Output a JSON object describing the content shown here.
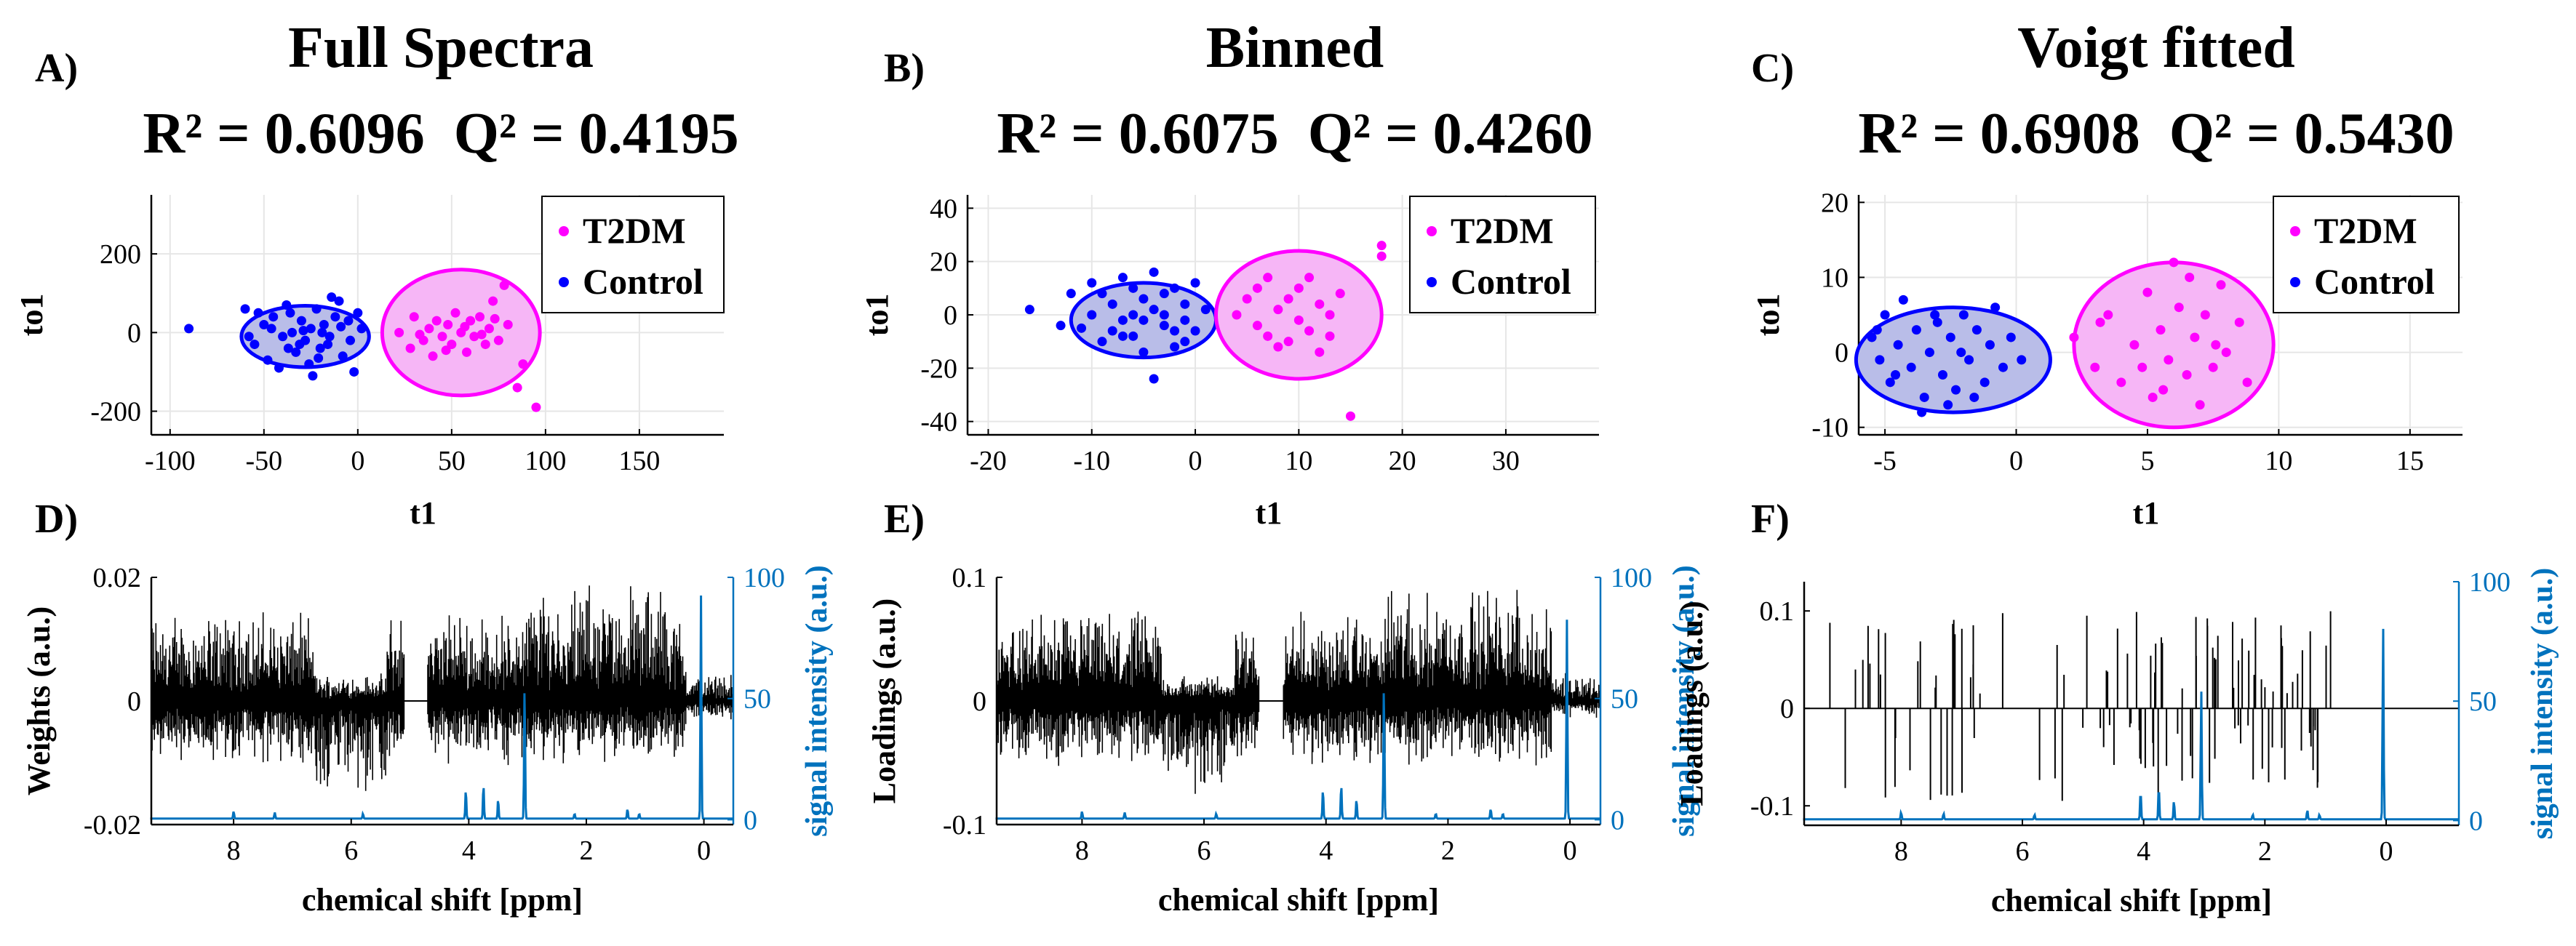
{
  "colors": {
    "t2dm": "#FF00FF",
    "control": "#0000FF",
    "signal": "#0072BD",
    "loading": "#000000",
    "grid": "#e6e6e6"
  },
  "chart_data": [
    {
      "type": "scatter",
      "panel": "A)",
      "title": "Full Spectra",
      "metrics": {
        "r2_label": "R² = 0.6096",
        "q2_label": "Q² = 0.4195"
      },
      "xlabel": "t1",
      "ylabel": "to1",
      "xlim": [
        -110,
        195
      ],
      "ylim": [
        -260,
        350
      ],
      "xticks": [
        -100,
        -50,
        0,
        50,
        100,
        150
      ],
      "yticks": [
        -200,
        0,
        200
      ],
      "legend": {
        "placement": "top-right",
        "entries": [
          "T2DM",
          "Control"
        ]
      },
      "ellipses": [
        {
          "group": "control",
          "cx": -28,
          "cy": -10,
          "rx": 34,
          "ry": 78
        },
        {
          "group": "t2dm",
          "cx": 55,
          "cy": 0,
          "rx": 42,
          "ry": 160
        }
      ],
      "series": [
        {
          "name": "Control",
          "group": "control",
          "points": [
            [
              -90,
              10
            ],
            [
              -60,
              60
            ],
            [
              -55,
              -30
            ],
            [
              -50,
              20
            ],
            [
              -48,
              -70
            ],
            [
              -45,
              40
            ],
            [
              -40,
              -10
            ],
            [
              -38,
              70
            ],
            [
              -35,
              0
            ],
            [
              -33,
              -50
            ],
            [
              -30,
              30
            ],
            [
              -28,
              -20
            ],
            [
              -25,
              10
            ],
            [
              -22,
              60
            ],
            [
              -20,
              -40
            ],
            [
              -18,
              20
            ],
            [
              -15,
              -10
            ],
            [
              -12,
              40
            ],
            [
              -10,
              80
            ],
            [
              -8,
              -60
            ],
            [
              -5,
              30
            ],
            [
              -2,
              -100
            ],
            [
              0,
              50
            ],
            [
              2,
              10
            ],
            [
              -58,
              -10
            ],
            [
              -42,
              -90
            ],
            [
              -36,
              50
            ],
            [
              -26,
              -80
            ],
            [
              -16,
              -30
            ],
            [
              -24,
              -110
            ],
            [
              -14,
              90
            ],
            [
              -4,
              -20
            ],
            [
              -46,
              10
            ],
            [
              -31,
              -30
            ],
            [
              -19,
              0
            ],
            [
              -53,
              50
            ],
            [
              -9,
              15
            ],
            [
              -37,
              -40
            ],
            [
              -29,
              5
            ],
            [
              -21,
              -65
            ]
          ]
        },
        {
          "name": "T2DM",
          "group": "t2dm",
          "points": [
            [
              22,
              0
            ],
            [
              28,
              -40
            ],
            [
              30,
              40
            ],
            [
              35,
              -20
            ],
            [
              38,
              10
            ],
            [
              40,
              -60
            ],
            [
              42,
              30
            ],
            [
              45,
              -10
            ],
            [
              48,
              20
            ],
            [
              50,
              -30
            ],
            [
              52,
              50
            ],
            [
              55,
              0
            ],
            [
              58,
              -50
            ],
            [
              60,
              30
            ],
            [
              62,
              -10
            ],
            [
              65,
              40
            ],
            [
              68,
              -30
            ],
            [
              70,
              10
            ],
            [
              72,
              80
            ],
            [
              75,
              -20
            ],
            [
              78,
              120
            ],
            [
              80,
              20
            ],
            [
              85,
              -140
            ],
            [
              95,
              -190
            ],
            [
              33,
              -5
            ],
            [
              47,
              -45
            ],
            [
              57,
              15
            ],
            [
              66,
              -5
            ],
            [
              73,
              35
            ],
            [
              88,
              -80
            ]
          ]
        }
      ]
    },
    {
      "type": "scatter",
      "panel": "B)",
      "title": "Binned",
      "metrics": {
        "r2_label": "R² = 0.6075",
        "q2_label": "Q² = 0.4260"
      },
      "xlabel": "t1",
      "ylabel": "to1",
      "xlim": [
        -22,
        39
      ],
      "ylim": [
        -45,
        45
      ],
      "xticks": [
        -20,
        -10,
        0,
        10,
        20,
        30
      ],
      "yticks": [
        -40,
        -20,
        0,
        20,
        40
      ],
      "legend": {
        "placement": "top-right",
        "entries": [
          "T2DM",
          "Control"
        ]
      },
      "ellipses": [
        {
          "group": "control",
          "cx": -5,
          "cy": -2,
          "rx": 7,
          "ry": 14
        },
        {
          "group": "t2dm",
          "cx": 10,
          "cy": 0,
          "rx": 8,
          "ry": 24
        }
      ],
      "series": [
        {
          "name": "Control",
          "group": "control",
          "points": [
            [
              -16,
              2
            ],
            [
              -12,
              8
            ],
            [
              -11,
              -5
            ],
            [
              -10,
              12
            ],
            [
              -9,
              -10
            ],
            [
              -8,
              4
            ],
            [
              -7,
              -2
            ],
            [
              -7,
              14
            ],
            [
              -6,
              0
            ],
            [
              -6,
              -8
            ],
            [
              -5,
              6
            ],
            [
              -5,
              -14
            ],
            [
              -4,
              2
            ],
            [
              -4,
              16
            ],
            [
              -3,
              -4
            ],
            [
              -3,
              8
            ],
            [
              -2,
              -12
            ],
            [
              -2,
              10
            ],
            [
              -1,
              -2
            ],
            [
              -1,
              4
            ],
            [
              0,
              -6
            ],
            [
              0,
              12
            ],
            [
              1,
              2
            ],
            [
              -13,
              -4
            ],
            [
              -8,
              -6
            ],
            [
              -4,
              -24
            ],
            [
              -9,
              8
            ],
            [
              -6,
              10
            ],
            [
              -2,
              -6
            ],
            [
              -3,
              0
            ],
            [
              -7,
              -8
            ],
            [
              -1,
              -10
            ],
            [
              -5,
              -2
            ],
            [
              -10,
              0
            ]
          ]
        },
        {
          "name": "T2DM",
          "group": "t2dm",
          "points": [
            [
              4,
              0
            ],
            [
              5,
              6
            ],
            [
              6,
              -4
            ],
            [
              6,
              10
            ],
            [
              7,
              -8
            ],
            [
              8,
              2
            ],
            [
              8,
              -12
            ],
            [
              9,
              6
            ],
            [
              10,
              -2
            ],
            [
              10,
              10
            ],
            [
              11,
              -6
            ],
            [
              12,
              4
            ],
            [
              12,
              -14
            ],
            [
              13,
              0
            ],
            [
              14,
              8
            ],
            [
              15,
              -38
            ],
            [
              18,
              22
            ],
            [
              18,
              26
            ],
            [
              7,
              14
            ],
            [
              11,
              14
            ],
            [
              9,
              -10
            ],
            [
              13,
              -8
            ]
          ]
        }
      ]
    },
    {
      "type": "scatter",
      "panel": "C)",
      "title": "Voigt fitted",
      "metrics": {
        "r2_label": "R² = 0.6908",
        "q2_label": "Q² = 0.5430"
      },
      "xlabel": "t1",
      "ylabel": "to1",
      "xlim": [
        -6,
        17
      ],
      "ylim": [
        -11,
        21
      ],
      "xticks": [
        -5,
        0,
        5,
        10,
        15
      ],
      "yticks": [
        -10,
        0,
        10,
        20
      ],
      "legend": {
        "placement": "top-right",
        "entries": [
          "T2DM",
          "Control"
        ]
      },
      "ellipses": [
        {
          "group": "control",
          "cx": -2.4,
          "cy": -1,
          "rx": 3.7,
          "ry": 7
        },
        {
          "group": "t2dm",
          "cx": 6,
          "cy": 1,
          "rx": 3.8,
          "ry": 11
        }
      ],
      "series": [
        {
          "name": "Control",
          "group": "control",
          "points": [
            [
              -5.5,
              2
            ],
            [
              -5.2,
              -1
            ],
            [
              -5,
              5
            ],
            [
              -4.8,
              -4
            ],
            [
              -4.5,
              1
            ],
            [
              -4.3,
              7
            ],
            [
              -4,
              -2
            ],
            [
              -3.8,
              3
            ],
            [
              -3.5,
              -6
            ],
            [
              -3.3,
              0
            ],
            [
              -3,
              4
            ],
            [
              -2.8,
              -3
            ],
            [
              -2.5,
              2
            ],
            [
              -2.3,
              -5
            ],
            [
              -2,
              5
            ],
            [
              -1.8,
              -1
            ],
            [
              -1.5,
              3
            ],
            [
              -1.2,
              -4
            ],
            [
              -1,
              1
            ],
            [
              -0.8,
              6
            ],
            [
              -0.5,
              -2
            ],
            [
              -0.2,
              2
            ],
            [
              0.2,
              -1
            ],
            [
              -3.6,
              -8
            ],
            [
              -2.6,
              -7
            ],
            [
              -4.6,
              -3
            ],
            [
              -1.6,
              -6
            ],
            [
              -5.3,
              3
            ],
            [
              -3.1,
              5
            ],
            [
              -2.1,
              0
            ]
          ]
        },
        {
          "name": "T2DM",
          "group": "t2dm",
          "points": [
            [
              2.2,
              2
            ],
            [
              3,
              -2
            ],
            [
              3.5,
              5
            ],
            [
              4,
              -4
            ],
            [
              4.5,
              1
            ],
            [
              5,
              8
            ],
            [
              5.2,
              -6
            ],
            [
              5.5,
              3
            ],
            [
              5.8,
              -1
            ],
            [
              6,
              12
            ],
            [
              6.2,
              6
            ],
            [
              6.5,
              -3
            ],
            [
              6.8,
              2
            ],
            [
              7,
              -7
            ],
            [
              7.2,
              5
            ],
            [
              7.5,
              -2
            ],
            [
              7.8,
              9
            ],
            [
              8,
              0
            ],
            [
              8.5,
              4
            ],
            [
              8.8,
              -4
            ],
            [
              4.8,
              -2
            ],
            [
              6.6,
              10
            ],
            [
              5.6,
              -5
            ],
            [
              7.6,
              1
            ],
            [
              3.2,
              4
            ]
          ]
        }
      ]
    },
    {
      "type": "line",
      "panel": "D)",
      "xlabel": "chemical shift [ppm]",
      "ylabel": "Weights (a.u.)",
      "y2label": "signal intensity (a.u.)",
      "xlim": [
        9.4,
        -0.5
      ],
      "ylim": [
        -0.02,
        0.02
      ],
      "y2lim": [
        -2,
        100
      ],
      "xticks": [
        8,
        6,
        4,
        2,
        0
      ],
      "yticks": [
        -0.02,
        0,
        0.02
      ],
      "y2ticks": [
        0,
        50,
        100
      ],
      "ytick_labels": [
        "-0.02",
        "0",
        "0.02"
      ],
      "loading_style": "dense",
      "loading_amplitude": 0.012,
      "negative_dip_ppm": [
        6.6,
        5.4
      ],
      "signal_peaks": [
        {
          "ppm": 4.05,
          "h": 12
        },
        {
          "ppm": 3.75,
          "h": 14
        },
        {
          "ppm": 3.5,
          "h": 8
        },
        {
          "ppm": 3.05,
          "h": 55
        },
        {
          "ppm": 1.3,
          "h": 4
        },
        {
          "ppm": 0.05,
          "h": 92
        }
      ]
    },
    {
      "type": "line",
      "panel": "E)",
      "xlabel": "chemical shift [ppm]",
      "ylabel": "Loadings (a.u.)",
      "y2label": "signal intensity (a.u.)",
      "xlim": [
        9.4,
        -0.5
      ],
      "ylim": [
        -0.1,
        0.1
      ],
      "y2lim": [
        -2,
        100
      ],
      "xticks": [
        8,
        6,
        4,
        2,
        0
      ],
      "yticks": [
        -0.1,
        0,
        0.1
      ],
      "y2ticks": [
        0,
        50,
        100
      ],
      "ytick_labels": [
        "-0.1",
        "0",
        "0.1"
      ],
      "loading_style": "dense",
      "loading_amplitude": 0.06,
      "negative_dip_ppm": [
        6.7,
        5.5
      ],
      "signal_peaks": [
        {
          "ppm": 4.05,
          "h": 12
        },
        {
          "ppm": 3.75,
          "h": 14
        },
        {
          "ppm": 3.5,
          "h": 8
        },
        {
          "ppm": 3.05,
          "h": 55
        },
        {
          "ppm": 1.3,
          "h": 4
        },
        {
          "ppm": 0.05,
          "h": 82
        }
      ]
    },
    {
      "type": "line",
      "panel": "F)",
      "xlabel": "chemical shift [ppm]",
      "ylabel": "Loadings (a.u.)",
      "y2label": "signal intensity (a.u.)",
      "xlim": [
        9.6,
        -1.2
      ],
      "ylim": [
        -0.12,
        0.13
      ],
      "y2lim": [
        -2,
        100
      ],
      "xticks": [
        8,
        6,
        4,
        2,
        0
      ],
      "yticks": [
        -0.1,
        0,
        0.1
      ],
      "y2ticks": [
        0,
        50,
        100
      ],
      "ytick_labels": [
        "-0.1",
        "0",
        "0.1"
      ],
      "loading_style": "sparse",
      "loading_amplitude": 0.1,
      "signal_peaks": [
        {
          "ppm": 4.05,
          "h": 12
        },
        {
          "ppm": 3.75,
          "h": 14
        },
        {
          "ppm": 3.5,
          "h": 8
        },
        {
          "ppm": 3.05,
          "h": 55
        },
        {
          "ppm": 1.3,
          "h": 4
        },
        {
          "ppm": 0.05,
          "h": 82
        }
      ]
    }
  ]
}
